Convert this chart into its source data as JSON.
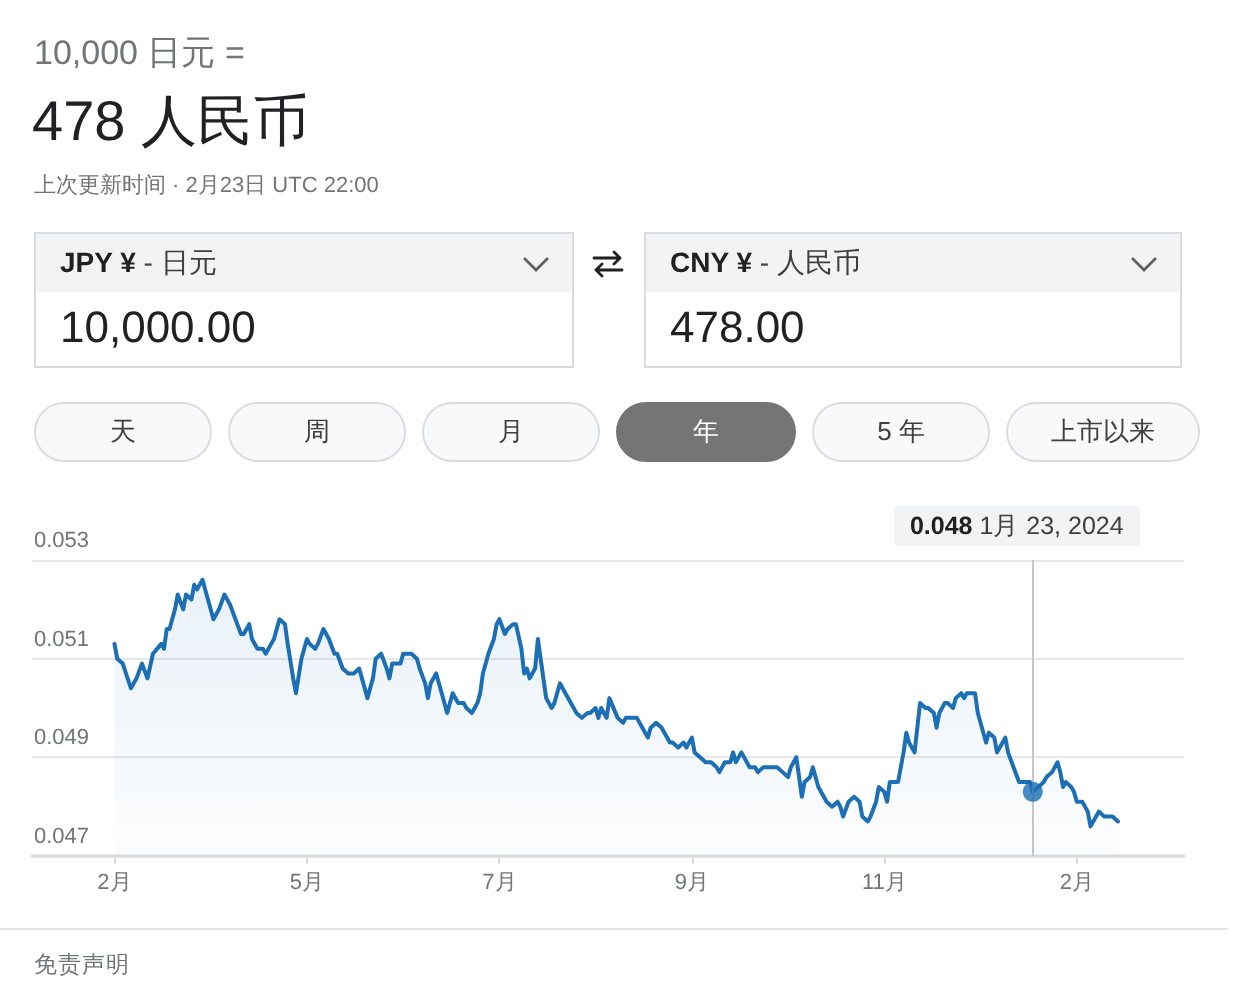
{
  "chart_data": {
    "type": "area",
    "title": "10,000 日元 =",
    "subtitle": "478 人民币",
    "annotations": [
      "上次更新时间 · 2月23日 UTC 22:00",
      "JPY ¥ - 日元",
      "10,000.00",
      "CNY ¥ - 人民币",
      "478.00",
      "天",
      "周",
      "月",
      "年",
      "5 年",
      "上市以来",
      "0.048 1月 23, 2024",
      "免责声明"
    ],
    "x": [
      "2023-02-23",
      "2023-02-24",
      "2023-02-26",
      "2023-03-01",
      "2023-03-03",
      "2023-03-05",
      "2023-03-07",
      "2023-03-09",
      "2023-03-12",
      "2023-03-13",
      "2023-03-14",
      "2023-03-15",
      "2023-03-17",
      "2023-03-18",
      "2023-03-20",
      "2023-03-21",
      "2023-03-23",
      "2023-03-24",
      "2023-03-25",
      "2023-03-27",
      "2023-03-29",
      "2023-03-31",
      "2023-04-02",
      "2023-04-04",
      "2023-04-06",
      "2023-04-08",
      "2023-04-10",
      "2023-04-11",
      "2023-04-13",
      "2023-04-14",
      "2023-04-16",
      "2023-04-18",
      "2023-04-19",
      "2023-04-21",
      "2023-04-22",
      "2023-04-24",
      "2023-04-26",
      "2023-04-27",
      "2023-04-29",
      "2023-04-30",
      "2023-05-02",
      "2023-05-04",
      "2023-05-05",
      "2023-05-07",
      "2023-05-08",
      "2023-05-10",
      "2023-05-12",
      "2023-05-14",
      "2023-05-15",
      "2023-05-17",
      "2023-05-19",
      "2023-05-21",
      "2023-05-23",
      "2023-05-24",
      "2023-05-26",
      "2023-05-28",
      "2023-05-29",
      "2023-05-31",
      "2023-06-02",
      "2023-06-03",
      "2023-06-04",
      "2023-06-06",
      "2023-06-07",
      "2023-06-08",
      "2023-06-11",
      "2023-06-13",
      "2023-06-14",
      "2023-06-16",
      "2023-06-17",
      "2023-06-18",
      "2023-06-20",
      "2023-06-21",
      "2023-06-23",
      "2023-06-24",
      "2023-06-26",
      "2023-06-28",
      "2023-06-30",
      "2023-07-01",
      "2023-07-03",
      "2023-07-05",
      "2023-07-06",
      "2023-07-07",
      "2023-07-09",
      "2023-07-11",
      "2023-07-12",
      "2023-07-13",
      "2023-07-15",
      "2023-07-16",
      "2023-07-18",
      "2023-07-19",
      "2023-07-21",
      "2023-07-22",
      "2023-07-23",
      "2023-07-24",
      "2023-07-26",
      "2023-07-27",
      "2023-07-28",
      "2023-07-29",
      "2023-07-30",
      "2023-08-01",
      "2023-08-02",
      "2023-08-04",
      "2023-08-06",
      "2023-08-08",
      "2023-08-10",
      "2023-08-12",
      "2023-08-14",
      "2023-08-15",
      "2023-08-17",
      "2023-08-18",
      "2023-08-19",
      "2023-08-21",
      "2023-08-22",
      "2023-08-25",
      "2023-08-27",
      "2023-08-28",
      "2023-08-30",
      "2023-09-01",
      "2023-09-03",
      "2023-09-05",
      "2023-09-06",
      "2023-09-08",
      "2023-09-10",
      "2023-09-11",
      "2023-09-13",
      "2023-09-14",
      "2023-09-16",
      "2023-09-18",
      "2023-09-19",
      "2023-09-21",
      "2023-09-22",
      "2023-09-24",
      "2023-09-26",
      "2023-09-28",
      "2023-09-30",
      "2023-10-01",
      "2023-10-03",
      "2023-10-05",
      "2023-10-06",
      "2023-10-07",
      "2023-10-09",
      "2023-10-10",
      "2023-10-12",
      "2023-10-14",
      "2023-10-15",
      "2023-10-17",
      "2023-10-20",
      "2023-10-22",
      "2023-10-24",
      "2023-10-26",
      "2023-10-27",
      "2023-10-29",
      "2023-10-31",
      "2023-11-01",
      "2023-11-03",
      "2023-11-04",
      "2023-11-06",
      "2023-11-08",
      "2023-11-09",
      "2023-11-11",
      "2023-11-13",
      "2023-11-14",
      "2023-11-15",
      "2023-11-17",
      "2023-11-19",
      "2023-11-21",
      "2023-11-22",
      "2023-11-24",
      "2023-11-25",
      "2023-11-27",
      "2023-11-28",
      "2023-11-30",
      "2023-12-01",
      "2023-12-02",
      "2023-12-03",
      "2023-12-05",
      "2023-12-07",
      "2023-12-08",
      "2023-12-09",
      "2023-12-11",
      "2023-12-12",
      "2023-12-13",
      "2023-12-15",
      "2023-12-16",
      "2023-12-18",
      "2023-12-19",
      "2023-12-20",
      "2023-12-22",
      "2023-12-23",
      "2023-12-25",
      "2023-12-26",
      "2023-12-28",
      "2023-12-29",
      "2023-12-30",
      "2023-12-31",
      "2024-01-02",
      "2024-01-03",
      "2024-01-04",
      "2024-01-06",
      "2024-01-07",
      "2024-01-09",
      "2024-01-10",
      "2024-01-11",
      "2024-01-13",
      "2024-01-14",
      "2024-01-16",
      "2024-01-18",
      "2024-01-20",
      "2024-01-22",
      "2024-01-23",
      "2024-01-25",
      "2024-01-27",
      "2024-01-28",
      "2024-01-30",
      "2024-02-01",
      "2024-02-02",
      "2024-02-03",
      "2024-02-04",
      "2024-02-06",
      "2024-02-07",
      "2024-02-08",
      "2024-02-10",
      "2024-02-12",
      "2024-02-13",
      "2024-02-15",
      "2024-02-16",
      "2024-02-18",
      "2024-02-20",
      "2024-02-21",
      "2024-02-23"
    ],
    "series": [
      {
        "color": "#1c6fb5",
        "marker": "none",
        "values": [
          0.0513,
          0.051,
          0.0509,
          0.0504,
          0.0506,
          0.0509,
          0.0506,
          0.0511,
          0.0513,
          0.0512,
          0.0516,
          0.0516,
          0.052,
          0.0523,
          0.052,
          0.0523,
          0.0522,
          0.0525,
          0.0524,
          0.0526,
          0.0522,
          0.0518,
          0.052,
          0.0523,
          0.0521,
          0.0518,
          0.0515,
          0.0515,
          0.0517,
          0.0514,
          0.0512,
          0.0512,
          0.0511,
          0.0513,
          0.0514,
          0.0518,
          0.0517,
          0.0513,
          0.0506,
          0.0503,
          0.051,
          0.0514,
          0.0513,
          0.0512,
          0.0513,
          0.0516,
          0.0514,
          0.0511,
          0.0511,
          0.0508,
          0.0507,
          0.0507,
          0.0508,
          0.0506,
          0.0502,
          0.0506,
          0.051,
          0.0511,
          0.0508,
          0.0506,
          0.0509,
          0.0509,
          0.0509,
          0.0511,
          0.0511,
          0.051,
          0.0508,
          0.0505,
          0.0502,
          0.0505,
          0.0507,
          0.0505,
          0.0501,
          0.0499,
          0.0503,
          0.0501,
          0.0501,
          0.05,
          0.0499,
          0.0501,
          0.0503,
          0.0507,
          0.0511,
          0.0514,
          0.0517,
          0.0518,
          0.0515,
          0.0516,
          0.0517,
          0.0517,
          0.0512,
          0.0507,
          0.0508,
          0.0506,
          0.0508,
          0.0514,
          0.051,
          0.0506,
          0.0502,
          0.05,
          0.0501,
          0.0505,
          0.0503,
          0.0501,
          0.0499,
          0.0498,
          0.0499,
          0.0499,
          0.05,
          0.0498,
          0.05,
          0.0498,
          0.0502,
          0.0498,
          0.0497,
          0.0498,
          0.0498,
          0.0498,
          0.0496,
          0.0494,
          0.0496,
          0.0497,
          0.0496,
          0.0495,
          0.0493,
          0.0493,
          0.0492,
          0.0493,
          0.0492,
          0.0494,
          0.0491,
          0.049,
          0.0489,
          0.0489,
          0.0488,
          0.0487,
          0.0489,
          0.0489,
          0.0491,
          0.0489,
          0.0491,
          0.049,
          0.0488,
          0.0488,
          0.0487,
          0.0488,
          0.0488,
          0.0488,
          0.0487,
          0.0486,
          0.0488,
          0.049,
          0.0482,
          0.0485,
          0.0486,
          0.0488,
          0.0484,
          0.0482,
          0.0481,
          0.048,
          0.0481,
          0.048,
          0.0478,
          0.0481,
          0.0482,
          0.0481,
          0.0478,
          0.0477,
          0.0478,
          0.0481,
          0.0484,
          0.0483,
          0.0481,
          0.0485,
          0.0485,
          0.0485,
          0.0491,
          0.0495,
          0.0493,
          0.0491,
          0.0496,
          0.0501,
          0.05,
          0.05,
          0.0499,
          0.0496,
          0.0499,
          0.0501,
          0.0501,
          0.05,
          0.0502,
          0.0503,
          0.0502,
          0.0503,
          0.0503,
          0.0503,
          0.0499,
          0.0497,
          0.0493,
          0.0495,
          0.0494,
          0.0491,
          0.0492,
          0.0494,
          0.0491,
          0.0488,
          0.0485,
          0.0485,
          0.0485,
          0.0483,
          0.0484,
          0.0485,
          0.0486,
          0.0487,
          0.0489,
          0.0487,
          0.0484,
          0.0485,
          0.0484,
          0.0483,
          0.0481,
          0.0481,
          0.0479,
          0.0476,
          0.0478,
          0.0479,
          0.0478,
          0.0478,
          0.0478,
          0.0477
        ]
      },
      {
        "type": "scatter",
        "color": "#1c6fb5",
        "marker": "circle",
        "x": [
          "2024-01-23"
        ],
        "values": [
          0.0483
        ]
      }
    ],
    "xlim": [
      "2023-01-24",
      "2024-03-18"
    ],
    "xticks": [
      {
        "value": "2023-02-23",
        "label": "2月"
      },
      {
        "value": "2023-05-04",
        "label": "5月"
      },
      {
        "value": "2023-07-13",
        "label": "7月"
      },
      {
        "value": "2023-09-21",
        "label": "9月"
      },
      {
        "value": "2023-11-30",
        "label": "11月"
      },
      {
        "value": "2024-02-08",
        "label": "2月"
      }
    ],
    "ylim": [
      0.047,
      0.053
    ],
    "yticks": [
      0.047,
      0.049,
      0.051,
      0.053
    ],
    "grid": "y",
    "ref_lines": [
      {
        "axis": "x",
        "value": "2024-01-23",
        "color": "#c6c6c6"
      }
    ]
  }
}
